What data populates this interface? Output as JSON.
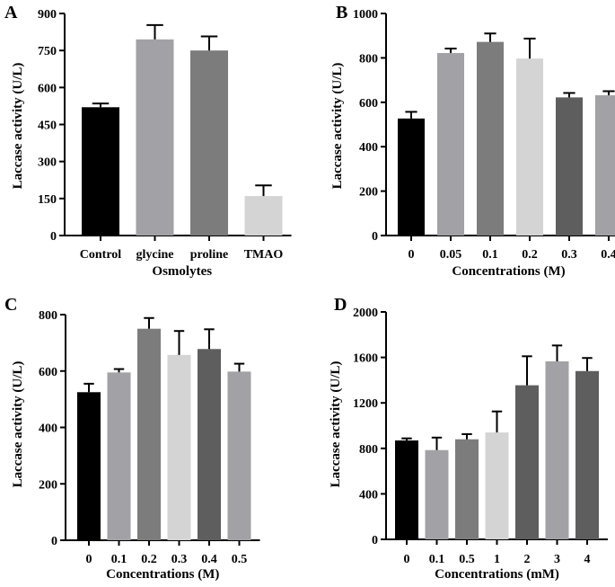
{
  "chart_data": [
    {
      "type": "bar",
      "panel_label": "A",
      "categories": [
        "Control",
        "glycine",
        "proline",
        "TMAO"
      ],
      "values": [
        520,
        795,
        750,
        160
      ],
      "errors": [
        15,
        58,
        57,
        43
      ],
      "colors": [
        "#000000",
        "#a2a2a6",
        "#7c7c7c",
        "#d4d4d4"
      ],
      "title": "",
      "xlabel": "Osmolytes",
      "ylabel": "Laccase activity (U/L)",
      "ylim": [
        0,
        900
      ],
      "yticks": [
        0,
        150,
        300,
        450,
        600,
        750,
        900
      ]
    },
    {
      "type": "bar",
      "panel_label": "B",
      "categories": [
        "0",
        "0.05",
        "0.1",
        "0.2",
        "0.3",
        "0.4"
      ],
      "values": [
        527,
        822,
        872,
        797,
        622,
        632
      ],
      "errors": [
        30,
        20,
        38,
        90,
        20,
        18
      ],
      "colors": [
        "#000000",
        "#a2a2a6",
        "#7c7c7c",
        "#d4d4d4",
        "#5e5e5e",
        "#a2a2a6"
      ],
      "title": "",
      "xlabel": "Concentrations (M)",
      "ylabel": "Laccase activity (U/L)",
      "ylim": [
        0,
        1000
      ],
      "yticks": [
        0,
        200,
        400,
        600,
        800,
        1000
      ]
    },
    {
      "type": "bar",
      "panel_label": "C",
      "categories": [
        "0",
        "0.1",
        "0.2",
        "0.3",
        "0.4",
        "0.5"
      ],
      "values": [
        525,
        595,
        750,
        657,
        678,
        598
      ],
      "errors": [
        30,
        12,
        38,
        85,
        70,
        28
      ],
      "colors": [
        "#000000",
        "#a2a2a6",
        "#7c7c7c",
        "#d4d4d4",
        "#5e5e5e",
        "#a2a2a6"
      ],
      "title": "",
      "xlabel": "Concentrations (M)",
      "ylabel": "Laccase activity (U/L)",
      "ylim": [
        0,
        800
      ],
      "yticks": [
        0,
        200,
        400,
        600,
        800
      ]
    },
    {
      "type": "bar",
      "panel_label": "D",
      "categories": [
        "0",
        "0.1",
        "0.5",
        "1",
        "2",
        "3",
        "4"
      ],
      "values": [
        870,
        785,
        880,
        940,
        1355,
        1565,
        1480
      ],
      "errors": [
        18,
        110,
        45,
        185,
        255,
        140,
        115
      ],
      "colors": [
        "#000000",
        "#a2a2a6",
        "#7c7c7c",
        "#d4d4d4",
        "#5e5e5e",
        "#a2a2a6",
        "#5e5e5e"
      ],
      "title": "",
      "xlabel": "Concentrations (mM)",
      "ylabel": "Laccase activity (U/L)",
      "ylim": [
        0,
        2000
      ],
      "yticks": [
        0,
        400,
        800,
        1200,
        1600,
        2000
      ]
    }
  ]
}
